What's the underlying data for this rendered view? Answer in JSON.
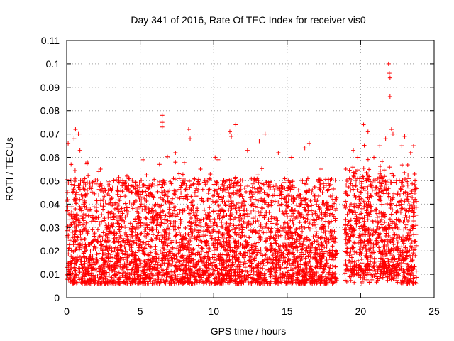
{
  "chart_data": {
    "type": "scatter",
    "title": "Day 341 of 2016, Rate Of TEC Index for receiver vis0",
    "xlabel": "GPS time / hours",
    "ylabel": "ROTI / TECUs",
    "xlim": [
      0,
      25
    ],
    "ylim": [
      0,
      0.11
    ],
    "grid": true,
    "marker": "+",
    "marker_color": "#ff0000",
    "xticks": [
      "0",
      "5",
      "10",
      "15",
      "20",
      "25"
    ],
    "xtick_values": [
      0,
      5,
      10,
      15,
      20,
      25
    ],
    "yticks": [
      "0",
      "0.01",
      "0.02",
      "0.03",
      "0.04",
      "0.05",
      "0.06",
      "0.07",
      "0.08",
      "0.09",
      "0.1",
      "0.11"
    ],
    "ytick_values": [
      0,
      0.01,
      0.02,
      0.03,
      0.04,
      0.05,
      0.06,
      0.07,
      0.08,
      0.09,
      0.1,
      0.11
    ],
    "data_gap_hours": [
      18.4,
      18.9
    ],
    "data_range_hours": [
      0,
      23.8
    ],
    "series": [
      {
        "name": "vis0 ROTI",
        "points": [
          [
            0.05,
            0.045
          ],
          [
            0.1,
            0.066
          ],
          [
            0.3,
            0.057
          ],
          [
            0.5,
            0.068
          ],
          [
            0.6,
            0.072
          ],
          [
            0.8,
            0.07
          ],
          [
            0.9,
            0.063
          ],
          [
            1.4,
            0.058
          ],
          [
            2.3,
            0.055
          ],
          [
            3.2,
            0.05
          ],
          [
            4.1,
            0.052
          ],
          [
            5.2,
            0.059
          ],
          [
            6.5,
            0.078
          ],
          [
            6.5,
            0.075
          ],
          [
            6.5,
            0.073
          ],
          [
            7.4,
            0.062
          ],
          [
            8.3,
            0.072
          ],
          [
            8.4,
            0.068
          ],
          [
            9.1,
            0.055
          ],
          [
            10.1,
            0.06
          ],
          [
            10.3,
            0.059
          ],
          [
            11.1,
            0.071
          ],
          [
            11.2,
            0.069
          ],
          [
            11.5,
            0.074
          ],
          [
            12.3,
            0.063
          ],
          [
            13.1,
            0.067
          ],
          [
            13.5,
            0.07
          ],
          [
            14.4,
            0.062
          ],
          [
            15.3,
            0.06
          ],
          [
            16.2,
            0.064
          ],
          [
            16.5,
            0.066
          ],
          [
            17.3,
            0.055
          ],
          [
            18.1,
            0.042
          ],
          [
            19.0,
            0.055
          ],
          [
            19.5,
            0.063
          ],
          [
            19.8,
            0.06
          ],
          [
            20.2,
            0.074
          ],
          [
            20.5,
            0.071
          ],
          [
            20.9,
            0.06
          ],
          [
            21.3,
            0.065
          ],
          [
            21.7,
            0.068
          ],
          [
            21.9,
            0.1
          ],
          [
            21.95,
            0.096
          ],
          [
            22.0,
            0.094
          ],
          [
            22.0,
            0.086
          ],
          [
            22.1,
            0.072
          ],
          [
            22.2,
            0.07
          ],
          [
            22.8,
            0.065
          ],
          [
            23.0,
            0.069
          ],
          [
            23.4,
            0.062
          ],
          [
            23.6,
            0.065
          ],
          [
            23.7,
            0.05
          ]
        ]
      }
    ]
  }
}
